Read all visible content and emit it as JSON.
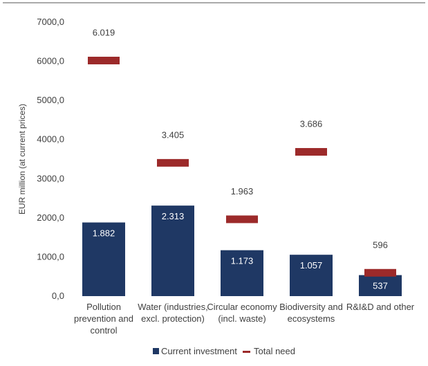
{
  "chart_data": {
    "type": "bar",
    "title": "",
    "xlabel": "",
    "ylabel": "EUR million (at current prices)",
    "ylim": [
      0,
      7000
    ],
    "yticks": [
      0,
      1000,
      2000,
      3000,
      4000,
      5000,
      6000,
      7000
    ],
    "ytick_labels": [
      "0,0",
      "1000,0",
      "2000,0",
      "3000,0",
      "4000,0",
      "5000,0",
      "6000,0",
      "7000,0"
    ],
    "grid": false,
    "legend_position": "bottom",
    "categories": [
      [
        "Pollution",
        "prevention and",
        "control"
      ],
      [
        "Water (industries,",
        "excl. protection)"
      ],
      [
        "Circular economy",
        "(incl. waste)"
      ],
      [
        "Biodiversity and",
        "ecosystems"
      ],
      [
        "R&I&D and other"
      ]
    ],
    "series": [
      {
        "name": "Current investment",
        "kind": "bar",
        "color": "#1f3864",
        "values": [
          1882,
          2313,
          1173,
          1057,
          537
        ],
        "labels": [
          "1.882",
          "2.313",
          "1.173",
          "1.057",
          "537"
        ],
        "label_color": "#ffffff"
      },
      {
        "name": "Total need",
        "kind": "marker",
        "color": "#9c2a2a",
        "values": [
          6019,
          3405,
          1963,
          3686,
          596
        ],
        "labels": [
          "6.019",
          "3.405",
          "1.963",
          "3.686",
          "596"
        ],
        "label_color": "#404040"
      }
    ]
  }
}
